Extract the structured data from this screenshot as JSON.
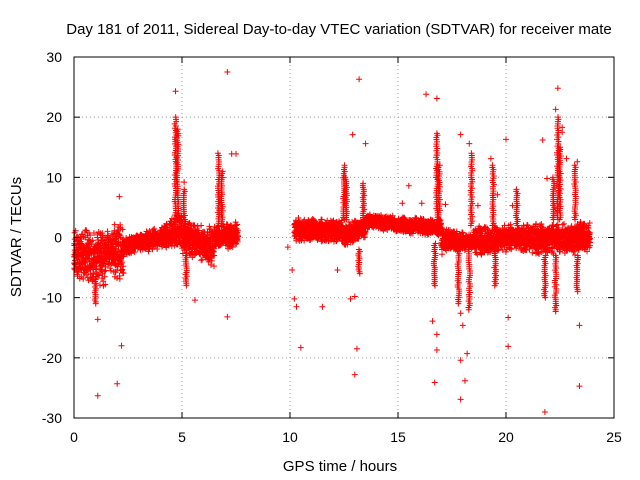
{
  "chart_data": {
    "type": "scatter",
    "title": "Day 181 of 2011, Sidereal Day-to-day VTEC variation (SDTVAR) for receiver mate",
    "xlabel": "GPS time / hours",
    "ylabel": "SDTVAR / TECUs",
    "xlim": [
      0,
      25
    ],
    "ylim": [
      -30,
      30
    ],
    "xticks": [
      0,
      5,
      10,
      15,
      20,
      25
    ],
    "yticks": [
      -30,
      -20,
      -10,
      0,
      10,
      20,
      30
    ],
    "grid": true,
    "marker": "plus",
    "color": "#ff0000",
    "bands": [
      {
        "x": [
          0.0,
          1.5
        ],
        "low": [
          -7.0,
          -9.0
        ],
        "high": [
          1.5,
          2.0
        ]
      },
      {
        "x": [
          1.5,
          2.3
        ],
        "low": [
          -5.0,
          -9.5
        ],
        "high": [
          1.5,
          4.0
        ]
      },
      {
        "x": [
          2.3,
          4.0
        ],
        "low": [
          -3.0,
          -2.0
        ],
        "high": [
          0.0,
          2.0
        ]
      },
      {
        "x": [
          4.0,
          5.0
        ],
        "low": [
          -2.0,
          -2.0
        ],
        "high": [
          2.0,
          5.0
        ]
      },
      {
        "x": [
          5.0,
          6.5
        ],
        "low": [
          -3.0,
          -5.0
        ],
        "high": [
          3.0,
          2.0
        ]
      },
      {
        "x": [
          6.5,
          7.6
        ],
        "low": [
          -2.0,
          -2.0
        ],
        "high": [
          2.0,
          3.0
        ]
      },
      {
        "x": [
          10.2,
          12.5
        ],
        "low": [
          -1.0,
          -1.0
        ],
        "high": [
          3.5,
          3.0
        ]
      },
      {
        "x": [
          12.5,
          13.5
        ],
        "low": [
          -2.0,
          0.0
        ],
        "high": [
          3.0,
          3.0
        ]
      },
      {
        "x": [
          13.5,
          17.0
        ],
        "low": [
          1.5,
          0.0
        ],
        "high": [
          4.0,
          3.0
        ]
      },
      {
        "x": [
          17.0,
          18.5
        ],
        "low": [
          -3.0,
          -2.0
        ],
        "high": [
          2.0,
          0.5
        ]
      },
      {
        "x": [
          18.5,
          21.0
        ],
        "low": [
          -3.0,
          -2.5
        ],
        "high": [
          2.0,
          2.5
        ]
      },
      {
        "x": [
          21.0,
          23.9
        ],
        "low": [
          -3.0,
          -3.0
        ],
        "high": [
          2.5,
          3.0
        ]
      }
    ],
    "spikes": [
      {
        "x": 4.7,
        "y": [
          3,
          20
        ]
      },
      {
        "x": 4.8,
        "y": [
          3,
          18
        ]
      },
      {
        "x": 5.1,
        "y": [
          2,
          8
        ]
      },
      {
        "x": 6.7,
        "y": [
          2,
          14
        ]
      },
      {
        "x": 6.85,
        "y": [
          2,
          11
        ]
      },
      {
        "x": 12.5,
        "y": [
          3,
          12
        ]
      },
      {
        "x": 12.6,
        "y": [
          3,
          10
        ]
      },
      {
        "x": 13.4,
        "y": [
          3,
          9
        ]
      },
      {
        "x": 13.2,
        "y": [
          -6,
          -2
        ]
      },
      {
        "x": 16.8,
        "y": [
          3,
          17
        ]
      },
      {
        "x": 16.9,
        "y": [
          2,
          12
        ]
      },
      {
        "x": 18.3,
        "y": [
          -12,
          -2
        ]
      },
      {
        "x": 18.4,
        "y": [
          2,
          14
        ]
      },
      {
        "x": 19.4,
        "y": [
          2,
          12
        ]
      },
      {
        "x": 19.5,
        "y": [
          -8,
          -2
        ]
      },
      {
        "x": 20.5,
        "y": [
          2,
          8
        ]
      },
      {
        "x": 22.3,
        "y": [
          -12,
          -3
        ]
      },
      {
        "x": 22.4,
        "y": [
          3,
          20
        ]
      },
      {
        "x": 22.5,
        "y": [
          3,
          15
        ]
      },
      {
        "x": 22.2,
        "y": [
          3,
          10
        ]
      },
      {
        "x": 23.2,
        "y": [
          3,
          12
        ]
      },
      {
        "x": 23.3,
        "y": [
          -9,
          -3
        ]
      },
      {
        "x": 21.8,
        "y": [
          -10,
          -3
        ]
      },
      {
        "x": 1.0,
        "y": [
          -11,
          -7
        ]
      },
      {
        "x": 5.2,
        "y": [
          -8,
          -3
        ]
      },
      {
        "x": 16.7,
        "y": [
          -8,
          -1
        ]
      },
      {
        "x": 17.8,
        "y": [
          -11,
          -2
        ]
      }
    ],
    "outliers": [
      [
        1.1,
        -26.3
      ],
      [
        2.0,
        -24.3
      ],
      [
        2.2,
        -18.0
      ],
      [
        1.1,
        -13.6
      ],
      [
        2.1,
        6.8
      ],
      [
        4.7,
        24.3
      ],
      [
        7.1,
        27.5
      ],
      [
        7.1,
        -13.2
      ],
      [
        7.3,
        13.9
      ],
      [
        7.5,
        13.9
      ],
      [
        5.1,
        9.2
      ],
      [
        5.6,
        -10.4
      ],
      [
        13.2,
        26.3
      ],
      [
        12.9,
        17.1
      ],
      [
        13.5,
        15.6
      ],
      [
        13.0,
        -22.8
      ],
      [
        13.1,
        -18.5
      ],
      [
        12.8,
        -10.2
      ],
      [
        13.0,
        -9.8
      ],
      [
        10.3,
        -11.5
      ],
      [
        10.2,
        -10.2
      ],
      [
        10.5,
        -18.3
      ],
      [
        11.5,
        -11.5
      ],
      [
        12.2,
        -5.4
      ],
      [
        10.1,
        -5.4
      ],
      [
        16.3,
        23.8
      ],
      [
        16.8,
        23.1
      ],
      [
        16.8,
        17.3
      ],
      [
        16.8,
        13.7
      ],
      [
        16.6,
        -13.9
      ],
      [
        16.8,
        -16.1
      ],
      [
        16.8,
        -18.7
      ],
      [
        16.7,
        -24.1
      ],
      [
        17.9,
        17.1
      ],
      [
        18.3,
        15.6
      ],
      [
        17.9,
        -20.4
      ],
      [
        17.9,
        -26.9
      ],
      [
        18.1,
        -23.8
      ],
      [
        18.2,
        -19.3
      ],
      [
        18.0,
        -14.6
      ],
      [
        17.9,
        -12.6
      ],
      [
        19.3,
        13.1
      ],
      [
        20.0,
        16.3
      ],
      [
        20.1,
        -13.3
      ],
      [
        20.1,
        -18.1
      ],
      [
        21.8,
        -29.0
      ],
      [
        22.4,
        24.8
      ],
      [
        22.3,
        21.3
      ],
      [
        22.6,
        18.3
      ],
      [
        22.6,
        17.5
      ],
      [
        22.8,
        13.1
      ],
      [
        23.3,
        12.6
      ],
      [
        23.4,
        -24.7
      ],
      [
        23.4,
        -14.6
      ],
      [
        22.3,
        -12.3
      ],
      [
        21.7,
        16.2
      ],
      [
        21.9,
        9.8
      ],
      [
        15.5,
        8.6
      ],
      [
        15.2,
        5.7
      ],
      [
        16.1,
        5.7
      ],
      [
        17.2,
        5.5
      ],
      [
        18.7,
        5.3
      ],
      [
        19.6,
        7.1
      ],
      [
        20.3,
        5.3
      ],
      [
        9.9,
        -1.6
      ]
    ]
  }
}
